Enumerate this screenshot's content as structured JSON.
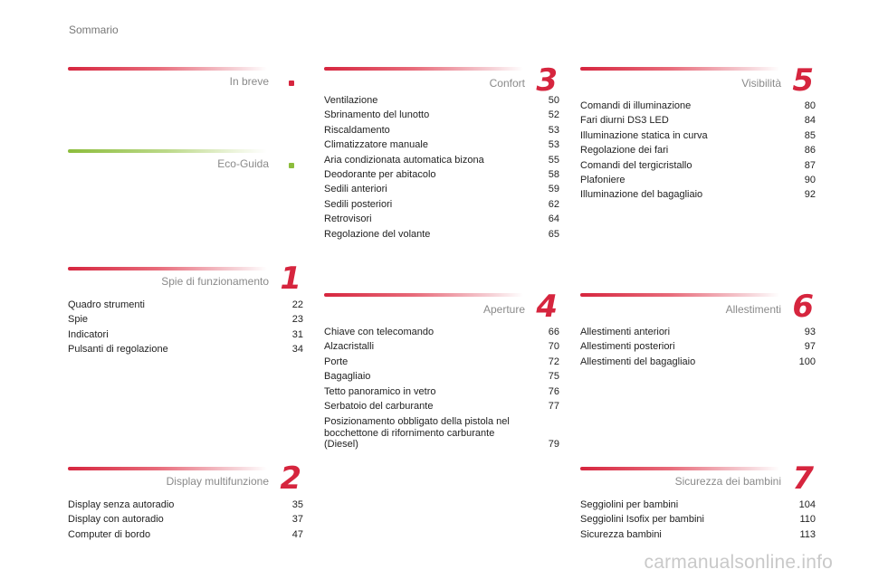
{
  "header": "Sommario",
  "sections": {
    "in_breve": {
      "title": "In breve"
    },
    "eco_guida": {
      "title": "Eco-Guida"
    },
    "spie": {
      "number": "1",
      "title": "Spie di funzionamento",
      "items": [
        {
          "label": "Quadro strumenti",
          "page": "22"
        },
        {
          "label": "Spie",
          "page": "23"
        },
        {
          "label": "Indicatori",
          "page": "31"
        },
        {
          "label": "Pulsanti di regolazione",
          "page": "34"
        }
      ]
    },
    "display": {
      "number": "2",
      "title": "Display multifunzione",
      "items": [
        {
          "label": "Display senza autoradio",
          "page": "35"
        },
        {
          "label": "Display con autoradio",
          "page": "37"
        },
        {
          "label": "Computer di bordo",
          "page": "47"
        }
      ]
    },
    "confort": {
      "number": "3",
      "title": "Confort",
      "items": [
        {
          "label": "Ventilazione",
          "page": "50"
        },
        {
          "label": "Sbrinamento del lunotto",
          "page": "52"
        },
        {
          "label": "Riscaldamento",
          "page": "53"
        },
        {
          "label": "Climatizzatore manuale",
          "page": "53"
        },
        {
          "label": "Aria condizionata automatica bizona",
          "page": "55"
        },
        {
          "label": "Deodorante per abitacolo",
          "page": "58"
        },
        {
          "label": "Sedili anteriori",
          "page": "59"
        },
        {
          "label": "Sedili posteriori",
          "page": "62"
        },
        {
          "label": "Retrovisori",
          "page": "64"
        },
        {
          "label": "Regolazione del volante",
          "page": "65"
        }
      ]
    },
    "aperture": {
      "number": "4",
      "title": "Aperture",
      "items": [
        {
          "label": "Chiave con telecomando",
          "page": "66"
        },
        {
          "label": "Alzacristalli",
          "page": "70"
        },
        {
          "label": "Porte",
          "page": "72"
        },
        {
          "label": "Bagagliaio",
          "page": "75"
        },
        {
          "label": "Tetto panoramico in vetro",
          "page": "76"
        },
        {
          "label": "Serbatoio del carburante",
          "page": "77"
        },
        {
          "label": "Posizionamento obbligato della pistola nel\n   bocchettone di rifornimento carburante\n   (Diesel)",
          "page": "79"
        }
      ]
    },
    "visibilita": {
      "number": "5",
      "title": "Visibilità",
      "items": [
        {
          "label": "Comandi di illuminazione",
          "page": "80"
        },
        {
          "label": "Fari diurni DS3 LED",
          "page": "84"
        },
        {
          "label": "Illuminazione statica in curva",
          "page": "85"
        },
        {
          "label": "Regolazione dei fari",
          "page": "86"
        },
        {
          "label": "Comandi del tergicristallo",
          "page": "87"
        },
        {
          "label": "Plafoniere",
          "page": "90"
        },
        {
          "label": "Illuminazione del bagagliaio",
          "page": "92"
        }
      ]
    },
    "allestimenti": {
      "number": "6",
      "title": "Allestimenti",
      "items": [
        {
          "label": "Allestimenti anteriori",
          "page": "93"
        },
        {
          "label": "Allestimenti posteriori",
          "page": "97"
        },
        {
          "label": "Allestimenti del bagagliaio",
          "page": "100"
        }
      ]
    },
    "sicurezza": {
      "number": "7",
      "title": "Sicurezza dei bambini",
      "items": [
        {
          "label": "Seggiolini per bambini",
          "page": "104"
        },
        {
          "label": "Seggiolini Isofix per bambini",
          "page": "110"
        },
        {
          "label": "Sicurezza bambini",
          "page": "113"
        }
      ]
    }
  },
  "watermark": "carmanualsonline.info",
  "colors": {
    "accent_red": "#d6253e",
    "accent_green": "#8cbd3c",
    "title_gray": "#8a8a8a"
  }
}
